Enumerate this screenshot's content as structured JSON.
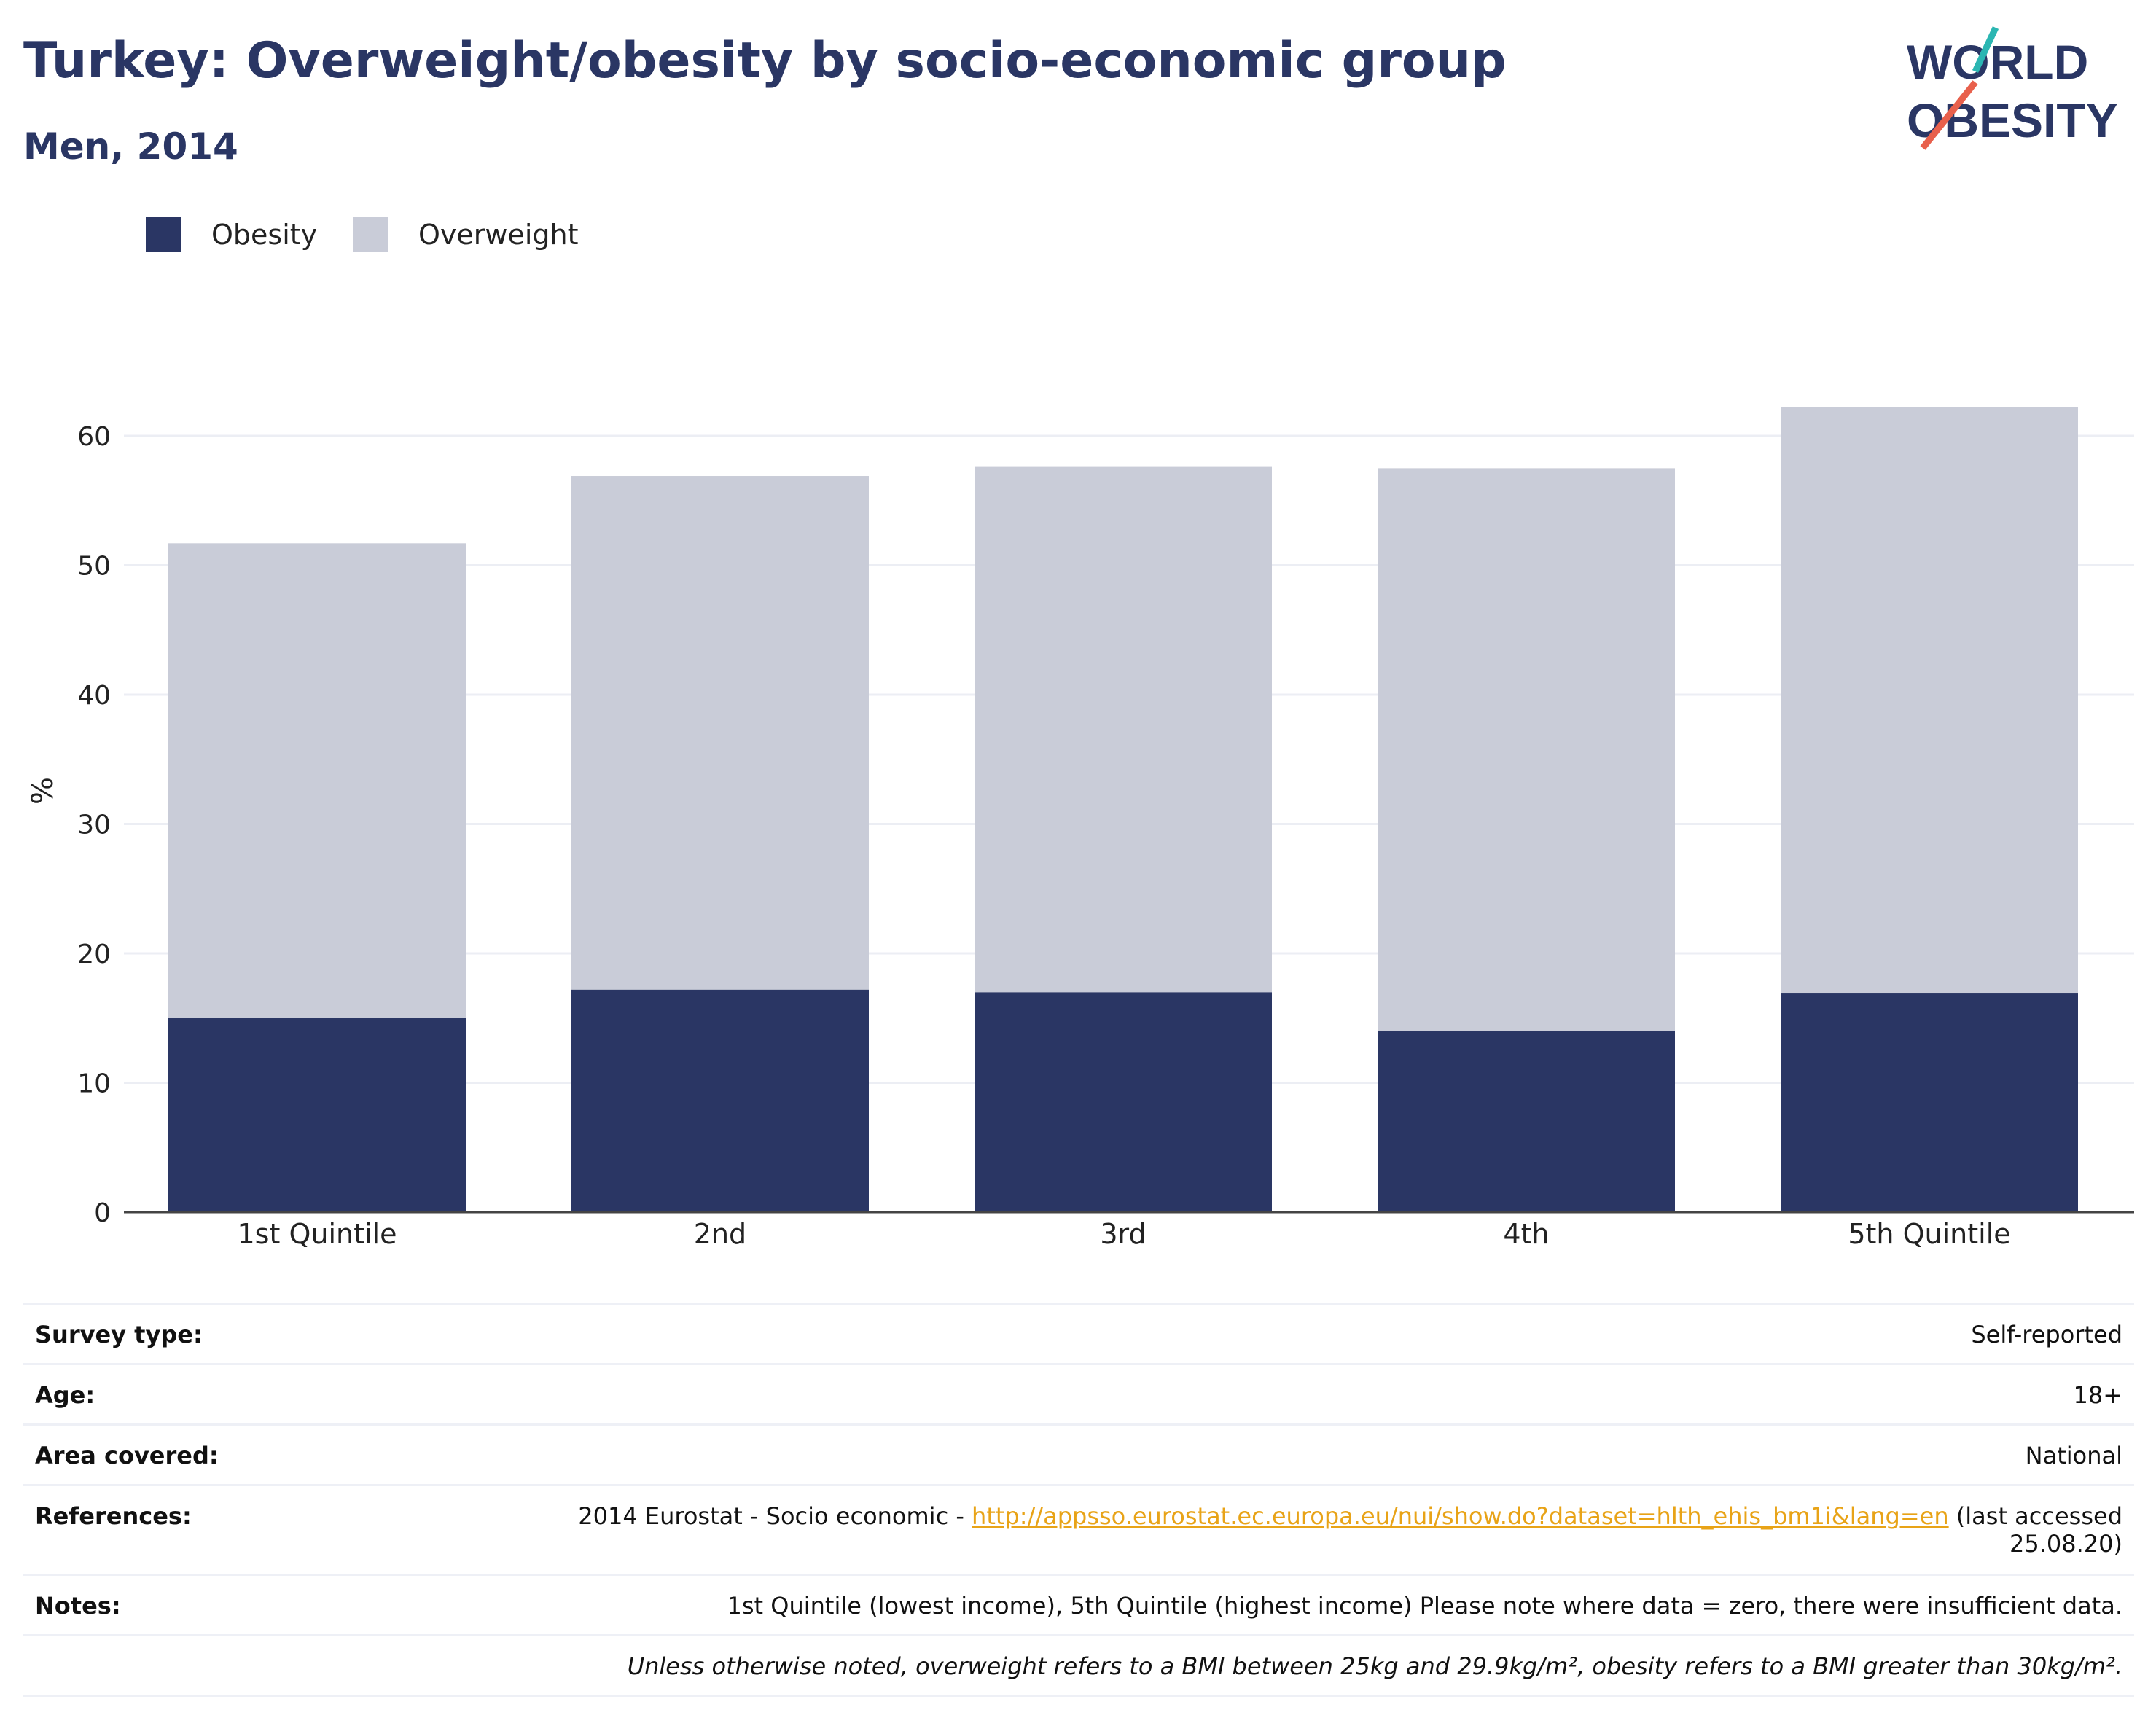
{
  "header": {
    "title": "Turkey: Overweight/obesity by socio-economic group",
    "subtitle": "Men, 2014"
  },
  "logo": {
    "line1": "WORLD",
    "line2": "OBESITY",
    "accent_colors": [
      "#2bb6b2",
      "#e8604c"
    ]
  },
  "legend": [
    {
      "label": "Obesity",
      "color": "#2a3664"
    },
    {
      "label": "Overweight",
      "color": "#c9ccd8"
    }
  ],
  "chart_data": {
    "type": "bar",
    "stacked": true,
    "categories": [
      "1st Quintile",
      "2nd",
      "3rd",
      "4th",
      "5th Quintile"
    ],
    "series": [
      {
        "name": "Obesity",
        "color": "#2a3664",
        "values": [
          15.0,
          17.2,
          17.0,
          14.0,
          16.9
        ]
      },
      {
        "name": "Overweight",
        "color": "#c9ccd8",
        "values": [
          36.7,
          39.7,
          40.6,
          43.5,
          45.3
        ]
      }
    ],
    "ylabel": "%",
    "xlabel": "",
    "ylim": [
      0,
      65
    ],
    "yticks": [
      0,
      10,
      20,
      30,
      40,
      50,
      60
    ],
    "grid": true,
    "legend_position": "top-left"
  },
  "info": {
    "survey_type_label": "Survey type:",
    "survey_type_value": "Self-reported",
    "age_label": "Age:",
    "age_value": "18+",
    "area_label": "Area covered:",
    "area_value": "National",
    "references_label": "References:",
    "references_prefix": "2014 Eurostat - Socio economic - ",
    "references_link": "http://appsso.eurostat.ec.europa.eu/nui/show.do?dataset=hlth_ehis_bm1i&lang=en",
    "references_suffix": " (last accessed",
    "references_suffix2": "25.08.20)",
    "notes_label": "Notes:",
    "notes_value": "1st Quintile (lowest income), 5th Quintile (highest income) Please note where data = zero, there were insufficient data.",
    "footnote": "Unless otherwise noted, overweight refers to a BMI between 25kg and 29.9kg/m², obesity refers to a BMI greater than 30kg/m²."
  }
}
